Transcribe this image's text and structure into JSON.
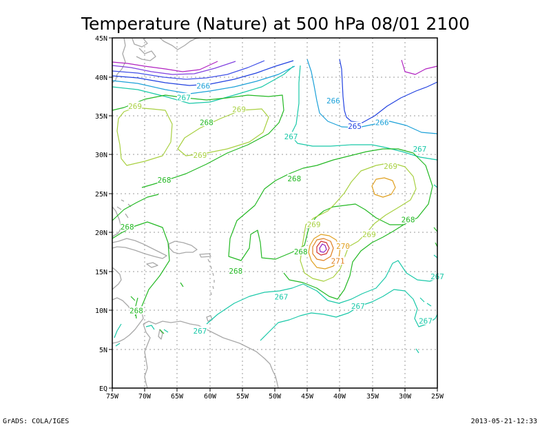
{
  "title": "Temperature (Nature) at 500 hPa 08/01 2100",
  "footer_left": "GrADS: COLA/IGES",
  "footer_right": "2013-05-21-12:33",
  "x_ticks": [
    "75W",
    "70W",
    "65W",
    "60W",
    "55W",
    "50W",
    "45W",
    "40W",
    "35W",
    "30W",
    "25W"
  ],
  "y_ticks": [
    "45N",
    "40N",
    "35N",
    "30N",
    "25N",
    "20N",
    "15N",
    "10N",
    "5N",
    "EQ"
  ],
  "contour_labels": [
    {
      "text": "266",
      "color": "#1aa0d8",
      "lon": -61.0,
      "lat": 38.8
    },
    {
      "text": "267",
      "color": "#18c8a8",
      "lon": -64.0,
      "lat": 37.3
    },
    {
      "text": "268",
      "color": "#22b822",
      "lon": -60.5,
      "lat": 34.1
    },
    {
      "text": "269",
      "color": "#a8d040",
      "lon": -71.5,
      "lat": 36.2
    },
    {
      "text": "269",
      "color": "#a8d040",
      "lon": -55.5,
      "lat": 35.8
    },
    {
      "text": "269",
      "color": "#a8d040",
      "lon": -61.5,
      "lat": 29.9
    },
    {
      "text": "266",
      "color": "#1aa0d8",
      "lon": -41.0,
      "lat": 36.9
    },
    {
      "text": "265",
      "color": "#2040e0",
      "lon": -37.7,
      "lat": 33.6
    },
    {
      "text": "266",
      "color": "#1aa0d8",
      "lon": -33.5,
      "lat": 34.1
    },
    {
      "text": "267",
      "color": "#18c8a8",
      "lon": -47.5,
      "lat": 32.3
    },
    {
      "text": "267",
      "color": "#18c8a8",
      "lon": -27.7,
      "lat": 30.7
    },
    {
      "text": "269",
      "color": "#a8d040",
      "lon": -32.2,
      "lat": 28.5
    },
    {
      "text": "268",
      "color": "#22b822",
      "lon": -67.0,
      "lat": 26.7
    },
    {
      "text": "268",
      "color": "#22b822",
      "lon": -47.0,
      "lat": 26.9
    },
    {
      "text": "268",
      "color": "#22b822",
      "lon": -72.7,
      "lat": 20.7
    },
    {
      "text": "269",
      "color": "#a8d040",
      "lon": -44.0,
      "lat": 21.0
    },
    {
      "text": "269",
      "color": "#a8d040",
      "lon": -35.5,
      "lat": 19.7
    },
    {
      "text": "268",
      "color": "#22b822",
      "lon": -29.5,
      "lat": 21.6
    },
    {
      "text": "268",
      "color": "#22b822",
      "lon": -46.0,
      "lat": 17.5
    },
    {
      "text": "270",
      "color": "#e0a020",
      "lon": -39.5,
      "lat": 18.2
    },
    {
      "text": "271",
      "color": "#e08020",
      "lon": -40.3,
      "lat": 16.3
    },
    {
      "text": "268",
      "color": "#22b822",
      "lon": -56.0,
      "lat": 15.0
    },
    {
      "text": "267",
      "color": "#18c8a8",
      "lon": -25.0,
      "lat": 14.3
    },
    {
      "text": "267",
      "color": "#18c8a8",
      "lon": -49.0,
      "lat": 11.7
    },
    {
      "text": "267",
      "color": "#18c8a8",
      "lon": -37.2,
      "lat": 10.5
    },
    {
      "text": "268",
      "color": "#22b822",
      "lon": -71.3,
      "lat": 9.9
    },
    {
      "text": "267",
      "color": "#18c8a8",
      "lon": -26.8,
      "lat": 8.6
    },
    {
      "text": "267",
      "color": "#18c8a8",
      "lon": -61.5,
      "lat": 7.3
    }
  ]
}
